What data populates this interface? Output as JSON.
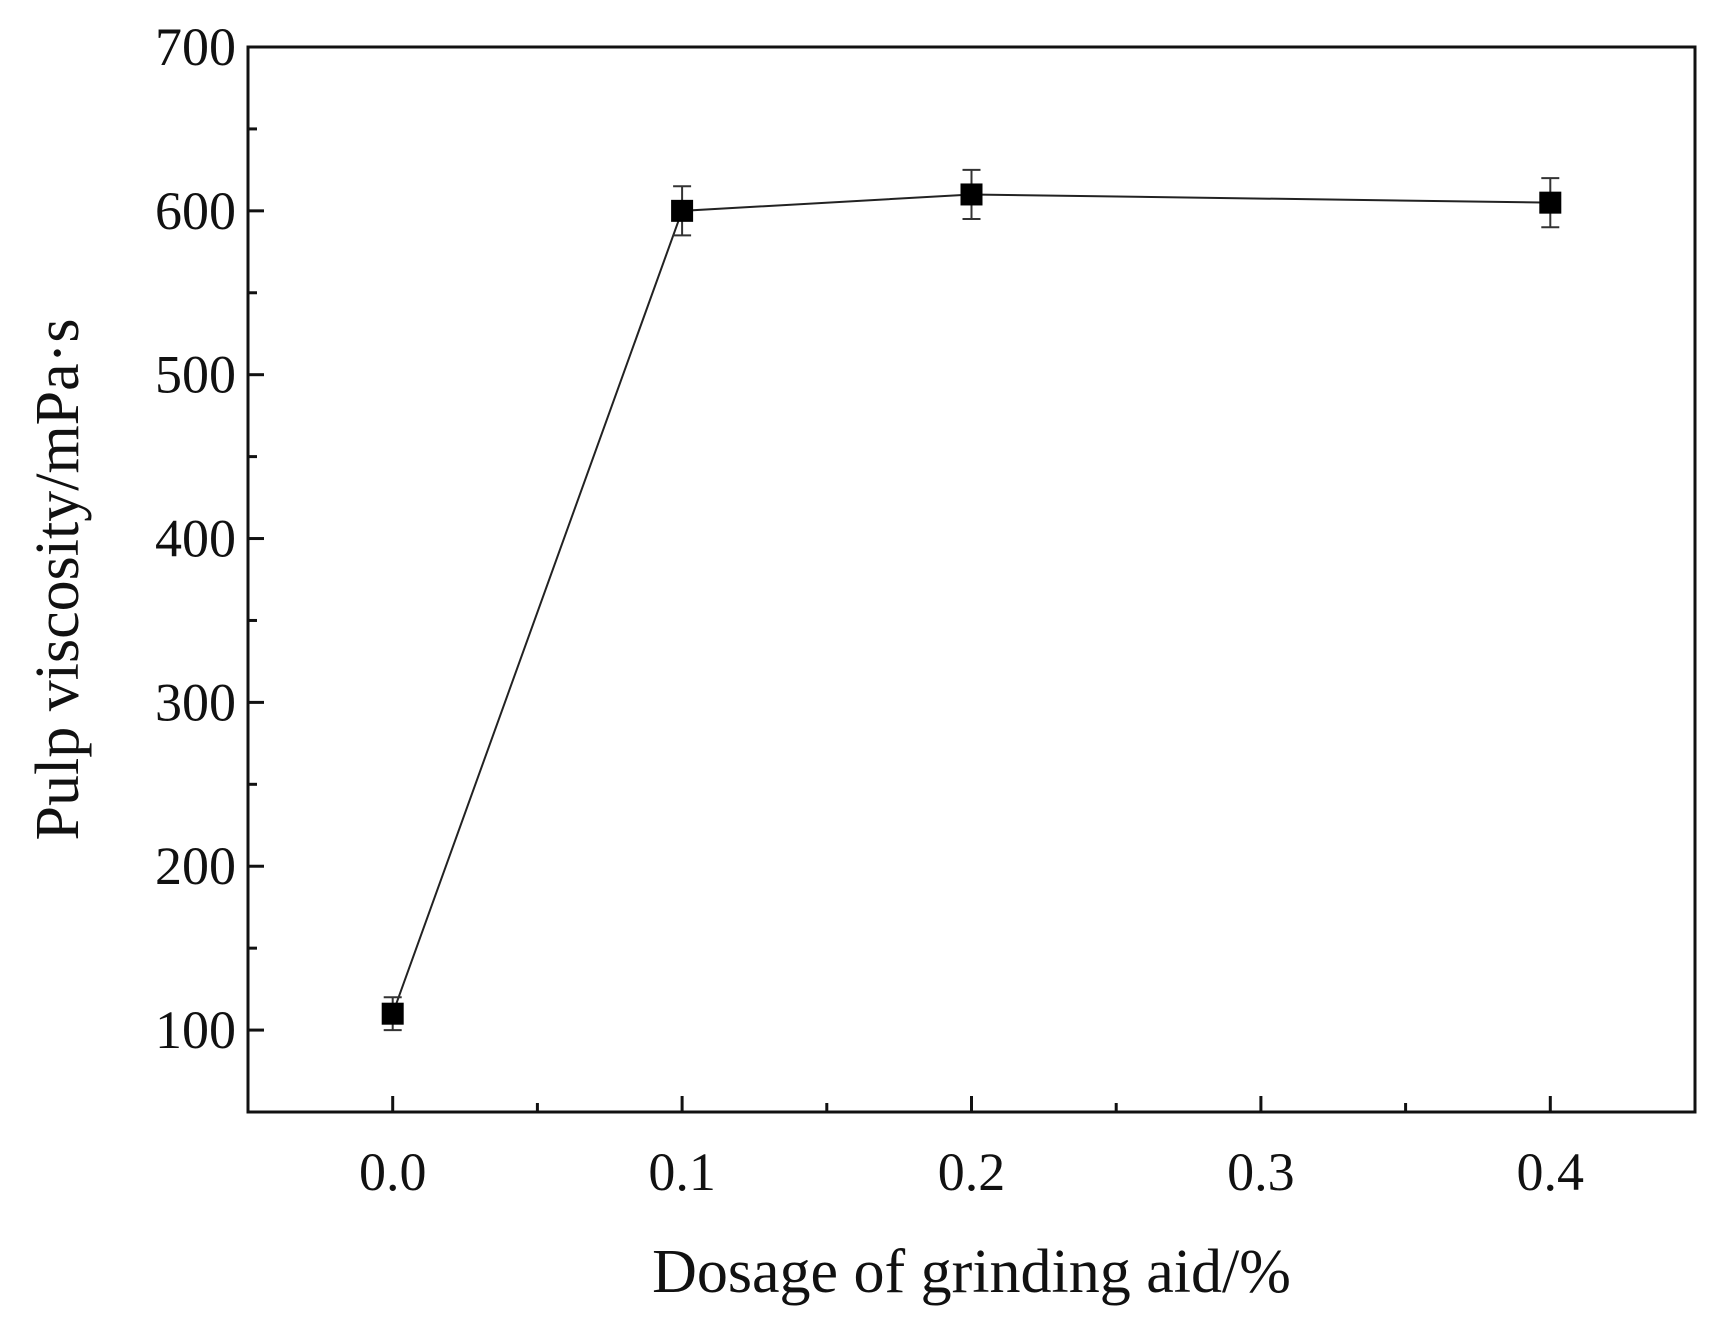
{
  "chart_data": {
    "type": "line",
    "title": "",
    "xlabel": "Dosage of grinding aid/%",
    "ylabel": "Pulp viscosity/mPa·s",
    "x_ticks": [
      "0.0",
      "0.1",
      "0.2",
      "0.3",
      "0.4"
    ],
    "y_ticks": [
      "100",
      "200",
      "300",
      "400",
      "500",
      "600",
      "700"
    ],
    "xlim": [
      -0.05,
      0.45
    ],
    "ylim": [
      50,
      700
    ],
    "grid": false,
    "legend": "none",
    "marker": "square",
    "series": [
      {
        "x": [
          0.0,
          0.1,
          0.2,
          0.4
        ],
        "y": [
          110,
          600,
          610,
          605
        ],
        "error": [
          10,
          15,
          15,
          15
        ]
      }
    ],
    "colors": {
      "line": "#222222",
      "marker": "#000000",
      "axis": "#111111"
    }
  }
}
